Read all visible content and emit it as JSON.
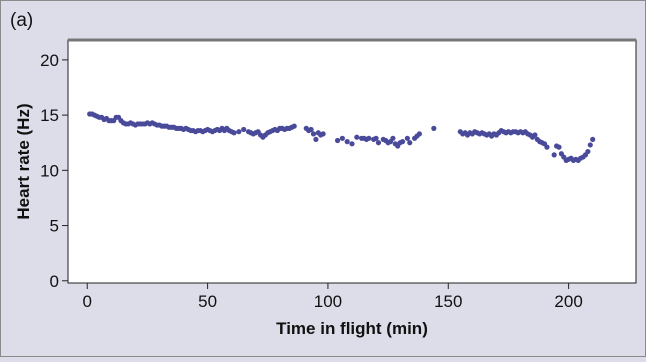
{
  "panel_label": "(a)",
  "chart_data": {
    "type": "scatter",
    "title": "",
    "xlabel": "Time in flight (min)",
    "ylabel": "Heart rate (Hz)",
    "xlim": [
      -8,
      228
    ],
    "ylim": [
      -0.2,
      21.8
    ],
    "xticks": [
      0,
      50,
      100,
      150,
      200
    ],
    "yticks": [
      0,
      5,
      10,
      15,
      20
    ],
    "grid": false,
    "series": [
      {
        "color": "#4a4a9a",
        "points": [
          [
            1,
            15.1
          ],
          [
            2,
            15.1
          ],
          [
            3,
            15.0
          ],
          [
            4,
            14.9
          ],
          [
            5,
            14.8
          ],
          [
            6,
            14.8
          ],
          [
            7,
            14.6
          ],
          [
            8,
            14.7
          ],
          [
            9,
            14.5
          ],
          [
            10,
            14.5
          ],
          [
            11,
            14.5
          ],
          [
            12,
            14.8
          ],
          [
            13,
            14.8
          ],
          [
            14,
            14.5
          ],
          [
            15,
            14.3
          ],
          [
            16,
            14.2
          ],
          [
            17,
            14.2
          ],
          [
            18,
            14.3
          ],
          [
            19,
            14.2
          ],
          [
            20,
            14.1
          ],
          [
            21,
            14.2
          ],
          [
            22,
            14.2
          ],
          [
            23,
            14.2
          ],
          [
            24,
            14.2
          ],
          [
            25,
            14.3
          ],
          [
            26,
            14.2
          ],
          [
            27,
            14.3
          ],
          [
            28,
            14.2
          ],
          [
            29,
            14.1
          ],
          [
            30,
            14.1
          ],
          [
            31,
            14.0
          ],
          [
            32,
            14.0
          ],
          [
            33,
            14.0
          ],
          [
            34,
            13.9
          ],
          [
            35,
            13.9
          ],
          [
            36,
            13.9
          ],
          [
            37,
            13.8
          ],
          [
            38,
            13.8
          ],
          [
            39,
            13.8
          ],
          [
            40,
            13.7
          ],
          [
            41,
            13.8
          ],
          [
            42,
            13.7
          ],
          [
            43,
            13.6
          ],
          [
            44,
            13.6
          ],
          [
            45,
            13.5
          ],
          [
            46,
            13.6
          ],
          [
            47,
            13.6
          ],
          [
            48,
            13.5
          ],
          [
            49,
            13.6
          ],
          [
            50,
            13.7
          ],
          [
            51,
            13.6
          ],
          [
            52,
            13.5
          ],
          [
            53,
            13.6
          ],
          [
            54,
            13.7
          ],
          [
            55,
            13.6
          ],
          [
            56,
            13.8
          ],
          [
            57,
            13.6
          ],
          [
            58,
            13.8
          ],
          [
            59,
            13.6
          ],
          [
            60,
            13.5
          ],
          [
            61,
            13.4
          ],
          [
            63,
            13.5
          ],
          [
            65,
            13.7
          ],
          [
            67,
            13.5
          ],
          [
            68,
            13.4
          ],
          [
            69,
            13.3
          ],
          [
            70,
            13.4
          ],
          [
            71,
            13.5
          ],
          [
            72,
            13.2
          ],
          [
            73,
            13.0
          ],
          [
            74,
            13.2
          ],
          [
            75,
            13.4
          ],
          [
            76,
            13.5
          ],
          [
            77,
            13.6
          ],
          [
            78,
            13.7
          ],
          [
            79,
            13.6
          ],
          [
            80,
            13.8
          ],
          [
            81,
            13.8
          ],
          [
            82,
            13.7
          ],
          [
            83,
            13.8
          ],
          [
            84,
            13.8
          ],
          [
            85,
            13.9
          ],
          [
            86,
            14.0
          ],
          [
            91,
            13.8
          ],
          [
            92,
            13.6
          ],
          [
            93,
            13.7
          ],
          [
            94,
            13.3
          ],
          [
            95,
            12.8
          ],
          [
            96,
            13.4
          ],
          [
            97,
            13.2
          ],
          [
            98,
            13.3
          ],
          [
            104,
            12.7
          ],
          [
            106,
            12.9
          ],
          [
            108,
            12.6
          ],
          [
            110,
            12.4
          ],
          [
            112,
            13.0
          ],
          [
            114,
            12.9
          ],
          [
            115,
            12.9
          ],
          [
            116,
            12.8
          ],
          [
            117,
            12.9
          ],
          [
            119,
            12.8
          ],
          [
            120,
            12.9
          ],
          [
            121,
            12.5
          ],
          [
            123,
            12.8
          ],
          [
            124,
            12.7
          ],
          [
            125,
            12.5
          ],
          [
            126,
            12.6
          ],
          [
            127,
            12.9
          ],
          [
            128,
            12.4
          ],
          [
            129,
            12.2
          ],
          [
            130,
            12.5
          ],
          [
            131,
            12.6
          ],
          [
            133,
            12.9
          ],
          [
            134,
            12.5
          ],
          [
            136,
            12.9
          ],
          [
            137,
            13.1
          ],
          [
            138,
            13.3
          ],
          [
            144,
            13.8
          ],
          [
            155,
            13.5
          ],
          [
            156,
            13.3
          ],
          [
            157,
            13.4
          ],
          [
            158,
            13.2
          ],
          [
            159,
            13.4
          ],
          [
            160,
            13.3
          ],
          [
            161,
            13.5
          ],
          [
            162,
            13.4
          ],
          [
            163,
            13.3
          ],
          [
            164,
            13.4
          ],
          [
            165,
            13.3
          ],
          [
            166,
            13.2
          ],
          [
            167,
            13.3
          ],
          [
            168,
            13.1
          ],
          [
            169,
            13.3
          ],
          [
            170,
            13.2
          ],
          [
            171,
            13.4
          ],
          [
            172,
            13.6
          ],
          [
            173,
            13.5
          ],
          [
            174,
            13.4
          ],
          [
            175,
            13.5
          ],
          [
            176,
            13.4
          ],
          [
            177,
            13.5
          ],
          [
            178,
            13.5
          ],
          [
            179,
            13.4
          ],
          [
            180,
            13.5
          ],
          [
            181,
            13.4
          ],
          [
            182,
            13.5
          ],
          [
            183,
            13.3
          ],
          [
            184,
            13.2
          ],
          [
            185,
            13.0
          ],
          [
            186,
            13.2
          ],
          [
            187,
            12.8
          ],
          [
            188,
            12.6
          ],
          [
            189,
            12.5
          ],
          [
            190,
            12.4
          ],
          [
            191,
            12.1
          ],
          [
            194,
            11.4
          ],
          [
            195,
            12.2
          ],
          [
            196,
            12.1
          ],
          [
            197,
            11.5
          ],
          [
            198,
            11.2
          ],
          [
            199,
            10.9
          ],
          [
            200,
            11.0
          ],
          [
            201,
            11.1
          ],
          [
            202,
            10.9
          ],
          [
            203,
            11.0
          ],
          [
            204,
            10.9
          ],
          [
            205,
            11.1
          ],
          [
            206,
            11.2
          ],
          [
            207,
            11.4
          ],
          [
            208,
            11.7
          ],
          [
            209,
            12.3
          ],
          [
            210,
            12.8
          ]
        ]
      }
    ]
  }
}
